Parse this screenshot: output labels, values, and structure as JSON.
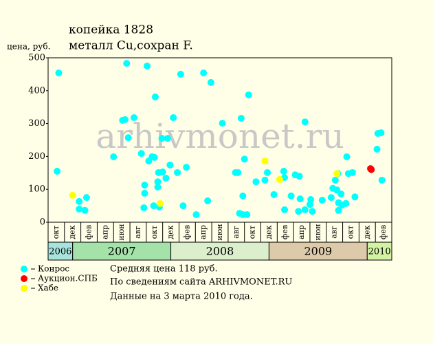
{
  "chart_data": {
    "type": "scatter",
    "title": "копейка 1828",
    "subtitle": "металл Cu,сохран F.",
    "y_label": "цена, руб.",
    "watermark": "arhivmonet.ru",
    "categories": [
      "окт",
      "дек",
      "фев",
      "апр",
      "июн",
      "авг",
      "окт",
      "дек",
      "фев",
      "апр",
      "июн",
      "авг",
      "окт",
      "дек",
      "фев",
      "апр",
      "июн",
      "авг",
      "окт",
      "дек",
      "фев"
    ],
    "years": [
      "2006",
      "2007",
      "2008",
      "2009",
      "2010"
    ],
    "year_colors": [
      "#a8e4dc",
      "#a4e2aa",
      "#dcefcc",
      "#dccaaa",
      "#d4f2a4"
    ],
    "xlim": [
      0,
      42
    ],
    "ylim": [
      0,
      500
    ],
    "yticks": [
      0,
      100,
      200,
      300,
      400,
      500
    ],
    "series": [
      {
        "name": "Конрос",
        "color": "#00ffff",
        "x": [
          1.1,
          1.3,
          3.8,
          3.8,
          4.5,
          4.7,
          8.0,
          9.1,
          9.4,
          9.6,
          9.8,
          10.5,
          11.4,
          11.7,
          11.8,
          11.8,
          12.1,
          12.3,
          12.7,
          12.9,
          13.0,
          13.1,
          13.4,
          13.4,
          13.5,
          13.6,
          13.9,
          14.0,
          14.4,
          14.6,
          14.9,
          15.3,
          15.8,
          16.2,
          16.5,
          16.9,
          18.1,
          19.0,
          19.5,
          19.9,
          21.3,
          22.9,
          23.2,
          23.4,
          23.6,
          23.8,
          23.8,
          24.0,
          24.3,
          24.5,
          25.4,
          26.5,
          26.8,
          27.6,
          28.8,
          28.9,
          28.9,
          29.7,
          30.2,
          30.6,
          30.7,
          30.8,
          31.4,
          31.4,
          32.0,
          32.1,
          32.3,
          33.5,
          34.6,
          34.8,
          35.1,
          35.3,
          35.4,
          35.5,
          35.5,
          35.8,
          35.9,
          36.4,
          36.5,
          36.7,
          37.2,
          37.5,
          40.2,
          40.3,
          40.7,
          40.8
        ],
        "values": [
          155,
          454,
          63,
          40,
          36,
          75,
          199,
          310,
          312,
          483,
          257,
          318,
          209,
          44,
          113,
          88,
          475,
          186,
          199,
          50,
          197,
          381,
          107,
          123,
          151,
          46,
          255,
          153,
          134,
          255,
          174,
          318,
          151,
          450,
          50,
          167,
          23,
          454,
          65,
          425,
          301,
          151,
          151,
          27,
          316,
          80,
          23,
          192,
          23,
          387,
          123,
          128,
          151,
          84,
          155,
          38,
          136,
          80,
          144,
          33,
          140,
          71,
          38,
          305,
          54,
          69,
          33,
          67,
          75,
          103,
          128,
          98,
          148,
          59,
          36,
          86,
          52,
          57,
          199,
          148,
          151,
          77,
          222,
          270,
          272,
          128
        ]
      },
      {
        "name": "Аукцион.СПБ",
        "color": "#ff0000",
        "x": [
          39.4,
          39.5
        ],
        "values": [
          163,
          160
        ]
      },
      {
        "name": "Хабе",
        "color": "#ffff00",
        "x": [
          3.0,
          13.7,
          26.5,
          28.3,
          35.3
        ],
        "values": [
          82,
          57,
          186,
          130,
          148
        ]
      }
    ],
    "notes": [
      "Средняя цена 118 руб.",
      "По  сведениям сайта ARHIVMONET.RU",
      "Данные на 3 марта 2010 года."
    ]
  }
}
